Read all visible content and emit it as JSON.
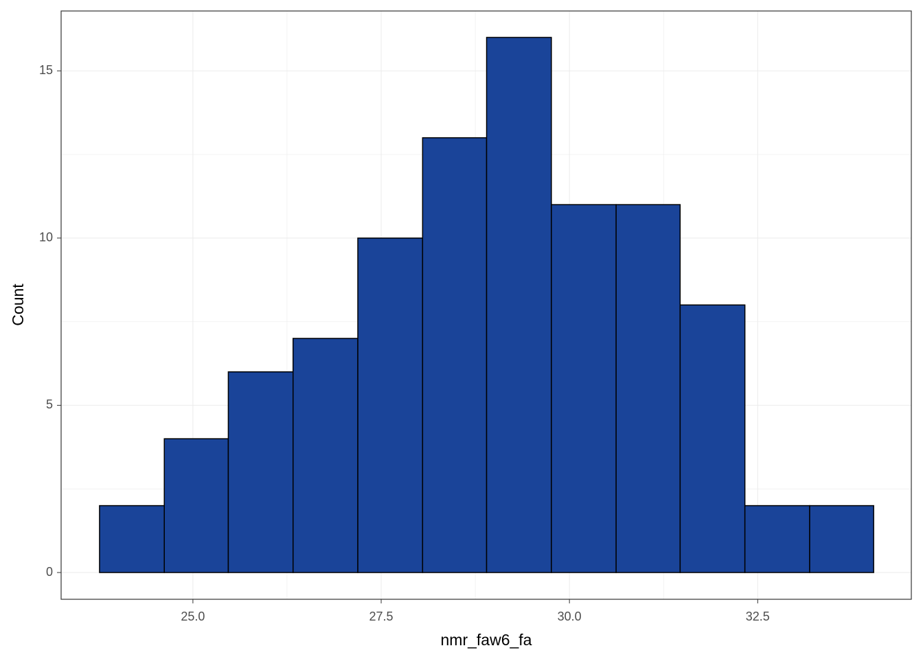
{
  "chart_data": {
    "type": "histogram",
    "x_label": "nmr_faw6_fa",
    "y_label": "Count",
    "bins": [
      23.76,
      24.62,
      25.47,
      26.33,
      27.19,
      28.05,
      28.9,
      29.76,
      30.62,
      31.47,
      32.33,
      33.19,
      34.04
    ],
    "counts": [
      2,
      4,
      6,
      7,
      10,
      13,
      16,
      11,
      11,
      8,
      2,
      2
    ],
    "color": "#1a4499",
    "edge_color": "#000000",
    "xlim": [
      23.25,
      34.54
    ],
    "ylim": [
      -0.8,
      16.79
    ],
    "xticks": [
      {
        "value": 25,
        "label": "25.0"
      },
      {
        "value": 27.5,
        "label": "27.5"
      },
      {
        "value": 30,
        "label": "30.0"
      },
      {
        "value": 32.5,
        "label": "32.5"
      }
    ],
    "yticks": [
      0,
      5,
      10,
      15
    ],
    "grid": true
  }
}
